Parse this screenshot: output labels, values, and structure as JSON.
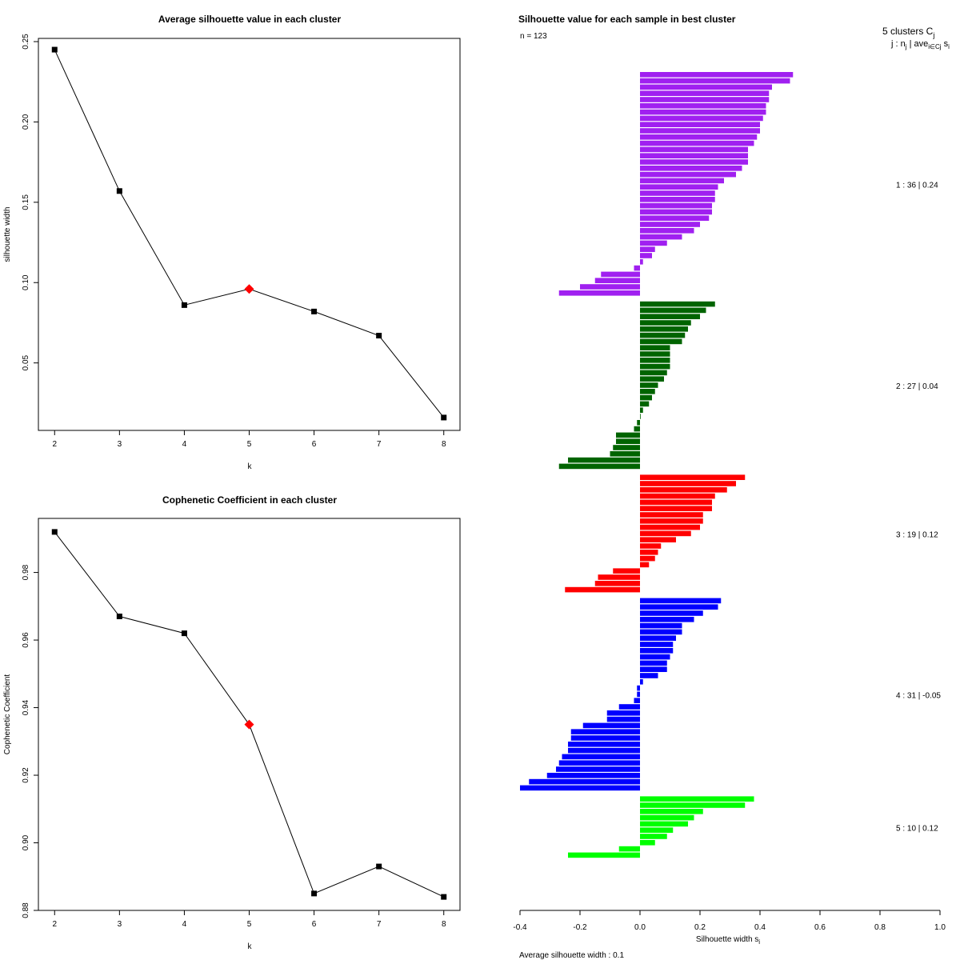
{
  "chart_data": [
    {
      "type": "line",
      "title": "Average silhouette value in each cluster",
      "xlabel": "k",
      "ylabel": "silhouette width",
      "x": [
        2,
        3,
        4,
        5,
        6,
        7,
        8
      ],
      "values": [
        0.245,
        0.157,
        0.086,
        0.096,
        0.082,
        0.067,
        0.016
      ],
      "highlight_index": 3,
      "highlight_color": "#ff0000",
      "xlim": [
        1.75,
        8.25
      ],
      "ylim": [
        0.008,
        0.252
      ],
      "xticks": [
        "2",
        "3",
        "4",
        "5",
        "6",
        "7",
        "8"
      ],
      "yticks": [
        0.05,
        0.1,
        0.15,
        0.2,
        0.25
      ],
      "ytick_labels": [
        "0.05",
        "0.10",
        "0.15",
        "0.20",
        "0.25"
      ]
    },
    {
      "type": "line",
      "title": "Cophenetic Coefficient in each cluster",
      "xlabel": "k",
      "ylabel": "Cophenetic Coefficient",
      "x": [
        2,
        3,
        4,
        5,
        6,
        7,
        8
      ],
      "values": [
        0.992,
        0.967,
        0.962,
        0.935,
        0.885,
        0.893,
        0.884
      ],
      "highlight_index": 3,
      "highlight_color": "#ff0000",
      "xlim": [
        1.75,
        8.25
      ],
      "ylim": [
        0.88,
        0.996
      ],
      "xticks": [
        "2",
        "3",
        "4",
        "5",
        "6",
        "7",
        "8"
      ],
      "yticks": [
        0.88,
        0.9,
        0.92,
        0.94,
        0.96,
        0.98
      ],
      "ytick_labels": [
        "0.88",
        "0.90",
        "0.92",
        "0.94",
        "0.96",
        "0.98"
      ]
    },
    {
      "type": "bar",
      "orientation": "horizontal",
      "title": "Silhouette value for each sample in best cluster",
      "n_label": "n = 123",
      "header_line1": "5  clusters  C",
      "header_sub1": "j",
      "header_line2": "j :  n",
      "header_sub2a": "j",
      "header_line2b": " | ave",
      "header_sub2b": "i∈Cj",
      "header_line2c": " s",
      "header_sub2c": "i",
      "xlabel": "Silhouette width s",
      "xlabel_sub": "i",
      "xlim": [
        -0.4,
        1.0
      ],
      "xticks": [
        -0.4,
        -0.2,
        0.0,
        0.2,
        0.4,
        0.6,
        0.8,
        1.0
      ],
      "xtick_labels": [
        "-0.4",
        "-0.2",
        "0.0",
        "0.2",
        "0.4",
        "0.6",
        "0.8",
        "1.0"
      ],
      "footer": "Average silhouette width :  0.1",
      "clusters": [
        {
          "id": 1,
          "label": "1 :   36  |  0.24",
          "color": "#a020f0",
          "values": [
            0.51,
            0.5,
            0.44,
            0.43,
            0.43,
            0.42,
            0.42,
            0.41,
            0.4,
            0.4,
            0.39,
            0.38,
            0.36,
            0.36,
            0.36,
            0.34,
            0.32,
            0.28,
            0.26,
            0.25,
            0.25,
            0.24,
            0.24,
            0.23,
            0.2,
            0.18,
            0.14,
            0.09,
            0.05,
            0.04,
            0.01,
            -0.02,
            -0.13,
            -0.15,
            -0.2,
            -0.27
          ]
        },
        {
          "id": 2,
          "label": "2 :   27  |  0.04",
          "color": "#006400",
          "values": [
            0.25,
            0.22,
            0.2,
            0.17,
            0.16,
            0.15,
            0.14,
            0.1,
            0.1,
            0.1,
            0.1,
            0.09,
            0.08,
            0.06,
            0.05,
            0.04,
            0.03,
            0.01,
            0.0,
            -0.01,
            -0.02,
            -0.08,
            -0.08,
            -0.09,
            -0.1,
            -0.24,
            -0.27
          ]
        },
        {
          "id": 3,
          "label": "3 :   19  |  0.12",
          "color": "#ff0000",
          "values": [
            0.35,
            0.32,
            0.29,
            0.25,
            0.24,
            0.24,
            0.21,
            0.21,
            0.2,
            0.17,
            0.12,
            0.07,
            0.06,
            0.05,
            0.03,
            -0.09,
            -0.14,
            -0.15,
            -0.25
          ]
        },
        {
          "id": 4,
          "label": "4 :   31  |  -0.05",
          "color": "#0000ff",
          "values": [
            0.27,
            0.26,
            0.21,
            0.18,
            0.14,
            0.14,
            0.12,
            0.11,
            0.11,
            0.1,
            0.09,
            0.09,
            0.06,
            0.01,
            -0.01,
            -0.01,
            -0.02,
            -0.07,
            -0.11,
            -0.11,
            -0.19,
            -0.23,
            -0.23,
            -0.24,
            -0.24,
            -0.26,
            -0.27,
            -0.28,
            -0.31,
            -0.37,
            -0.4
          ]
        },
        {
          "id": 5,
          "label": "5 :   10  |  0.12",
          "color": "#00ff00",
          "values": [
            0.38,
            0.35,
            0.21,
            0.18,
            0.16,
            0.11,
            0.09,
            0.05,
            -0.07,
            -0.24
          ]
        }
      ]
    }
  ]
}
